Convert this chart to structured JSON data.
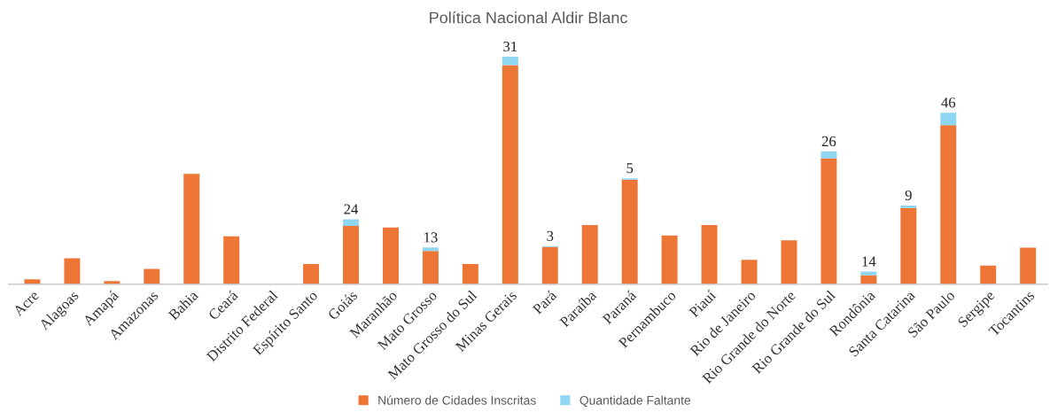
{
  "chart_data": {
    "type": "bar",
    "title": "Política Nacional Aldir Blanc",
    "stacked": true,
    "legend": "bottom",
    "grid": false,
    "categories": [
      "Acre",
      "Alagoas",
      "Amapá",
      "Amazonas",
      "Bahia",
      "Ceará",
      "Distrito Federal",
      "Espírito Santo",
      "Goiás",
      "Maranhão",
      "Mato Grosso",
      "Mato Grosso do Sul",
      "Minas Gerais",
      "Pará",
      "Paraíba",
      "Paraná",
      "Pernambuco",
      "Piauí",
      "Rio de Janeiro",
      "Rio Grande do Norte",
      "Rio Grande do Sul",
      "Rondônia",
      "Santa Catarina",
      "São Paulo",
      "Sergipe",
      "Tocantins"
    ],
    "series": [
      {
        "name": "Número de Cidades Inscritas",
        "color": "#ed7535",
        "values": [
          18,
          96,
          12,
          57,
          408,
          177,
          0,
          75,
          216,
          210,
          123,
          75,
          810,
          138,
          219,
          387,
          180,
          219,
          90,
          162,
          465,
          33,
          282,
          588,
          69,
          135
        ]
      },
      {
        "name": "Quantidade Faltante",
        "color": "#8fd6f2",
        "values": [
          null,
          null,
          null,
          null,
          null,
          null,
          null,
          null,
          24,
          null,
          13,
          null,
          31,
          3,
          null,
          5,
          null,
          null,
          null,
          null,
          26,
          14,
          9,
          46,
          null,
          null
        ],
        "value_labels": [
          null,
          null,
          null,
          null,
          null,
          null,
          null,
          null,
          "24",
          null,
          "13",
          null,
          "31",
          "3",
          null,
          "5",
          null,
          null,
          null,
          null,
          "26",
          "14",
          "9",
          "46",
          null,
          null
        ]
      }
    ]
  }
}
